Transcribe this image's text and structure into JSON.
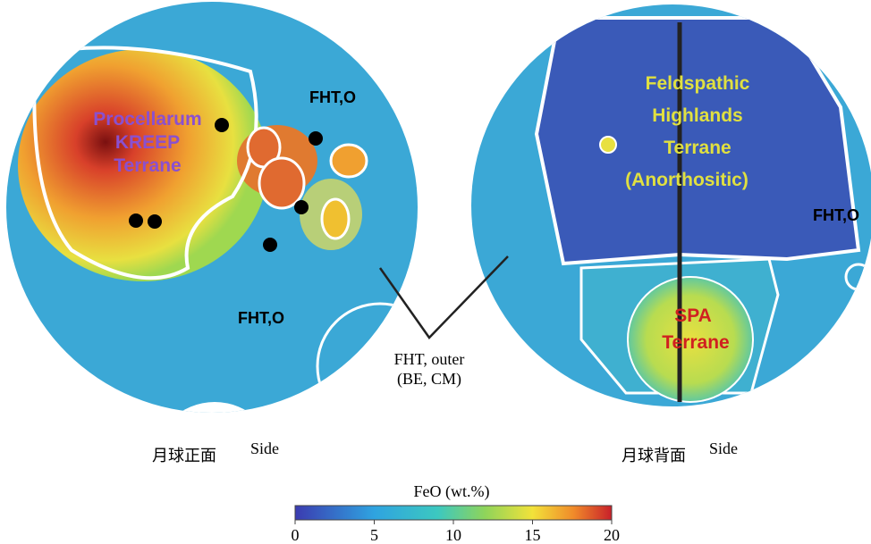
{
  "left_map": {
    "region_label": [
      "Procellarum",
      "KREEP",
      "Terrane"
    ],
    "other_labels": [
      "FHT,O",
      "FHT,O"
    ],
    "caption": "月球正面",
    "caption_side": "Side"
  },
  "right_map": {
    "region_label": [
      "Feldspathic",
      "Highlands",
      "Terrane",
      "(Anorthositic)"
    ],
    "other_labels": [
      "FHT,O"
    ],
    "spa_label": [
      "SPA",
      "Terrane"
    ],
    "caption": "月球背面",
    "caption_side": "Side"
  },
  "center_label": [
    "FHT, outer",
    "(BE, CM)"
  ],
  "colorbar": {
    "title": "FeO (wt.%)",
    "range": [
      0,
      20
    ],
    "ticks": [
      0,
      5,
      10,
      15,
      20
    ]
  }
}
